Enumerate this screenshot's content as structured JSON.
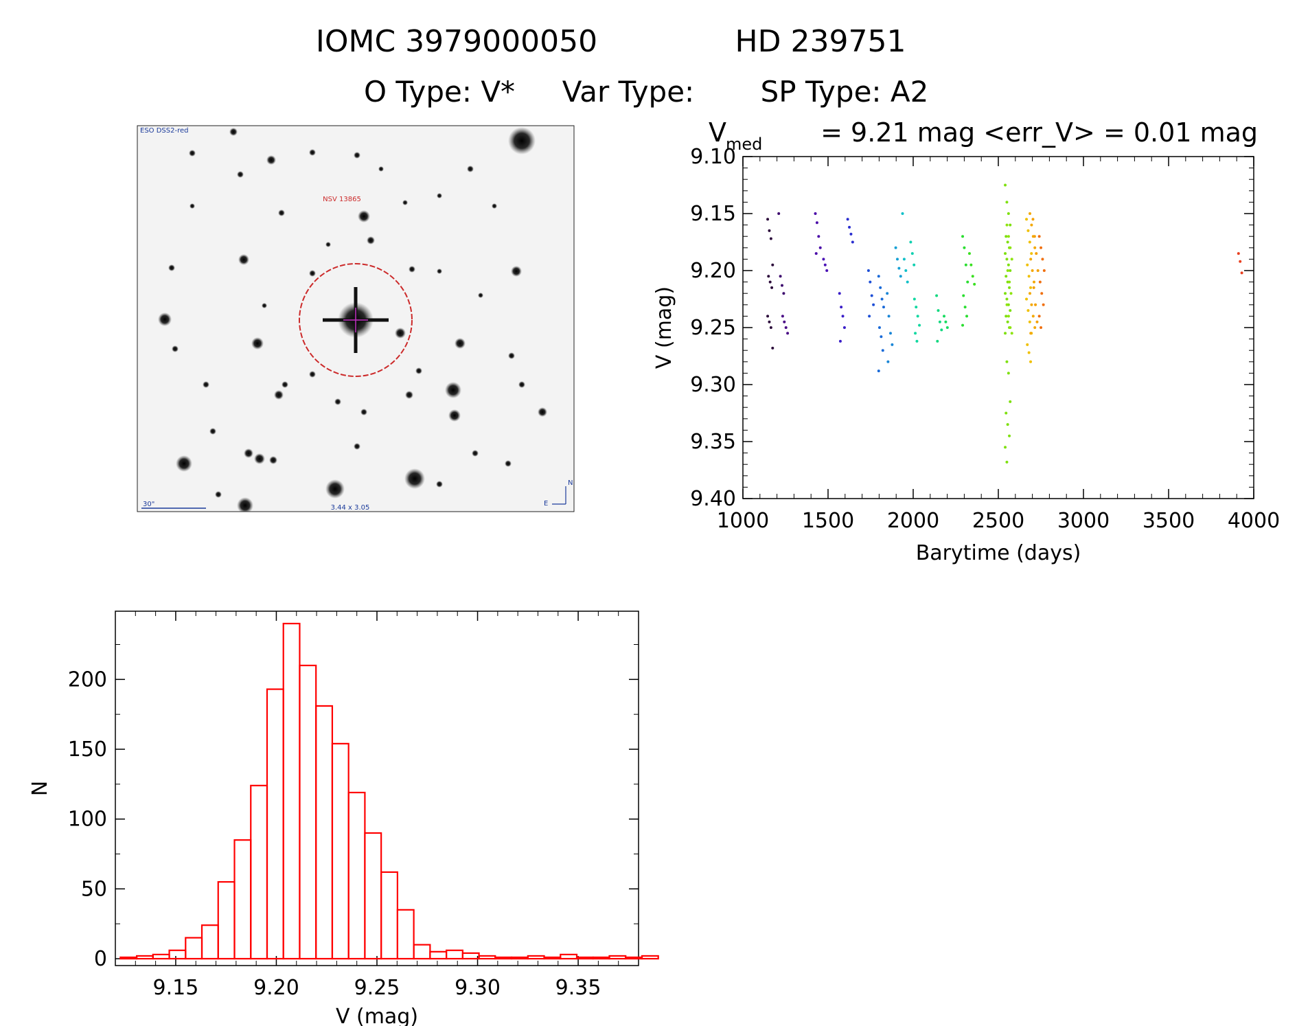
{
  "header": {
    "line1_left": "IOMC 3979000050",
    "line1_right": "HD 239751",
    "otype": "O Type: V*",
    "vartype": "Var Type:",
    "sptype": "SP Type: A2"
  },
  "sky_image": {
    "top_label": "ESO DSS2-red",
    "target_label": "NSV 13865",
    "scale_label": "30\"",
    "fov_label": "3.44 x 3.05",
    "north_label": "N",
    "east_label": "E"
  },
  "lc_title": {
    "v": "V",
    "med": "med",
    "rest": "= 9.21 mag <err_V> = 0.01 mag"
  },
  "colors": {
    "histogram": "#ff0000",
    "target_circle": "#cc2a2a",
    "sky_label": "#1a3a9a"
  },
  "chart_data": [
    {
      "type": "scatter",
      "title": "V med = 9.21 mag <err_V> = 0.01 mag",
      "xlabel": "Barytime (days)",
      "ylabel": "V (mag)",
      "xlim": [
        1000,
        4000
      ],
      "ylim": [
        9.4,
        9.1
      ],
      "y_inverted": true,
      "xticks": [
        "1000",
        "1500",
        "2000",
        "2500",
        "3000",
        "3500",
        "4000"
      ],
      "yticks": [
        "9.10",
        "9.15",
        "9.20",
        "9.25",
        "9.30",
        "9.35",
        "9.40"
      ],
      "groups": [
        {
          "x": 1160,
          "color": "#2b0a3a",
          "values": [
            9.155,
            9.165,
            9.172,
            9.195,
            9.205,
            9.21,
            9.215,
            9.24,
            9.245,
            9.25,
            9.268
          ]
        },
        {
          "x": 1225,
          "color": "#3d0a6e",
          "values": [
            9.15,
            9.205,
            9.213,
            9.22
          ]
        },
        {
          "x": 1248,
          "color": "#4a0a85",
          "values": [
            9.24,
            9.245,
            9.25,
            9.255
          ]
        },
        {
          "x": 1440,
          "color": "#4a0aa8",
          "values": [
            9.15,
            9.158,
            9.17,
            9.18,
            9.185
          ]
        },
        {
          "x": 1488,
          "color": "#4a12b5",
          "values": [
            9.19,
            9.195,
            9.2
          ]
        },
        {
          "x": 1582,
          "color": "#3a1ec8",
          "values": [
            9.22,
            9.232,
            9.24,
            9.25,
            9.262
          ]
        },
        {
          "x": 1630,
          "color": "#2a2ed0",
          "values": [
            9.155,
            9.162,
            9.168,
            9.175
          ]
        },
        {
          "x": 1752,
          "color": "#1e4fd6",
          "values": [
            9.2,
            9.21,
            9.222,
            9.23,
            9.24
          ]
        },
        {
          "x": 1812,
          "color": "#1a6ad8",
          "values": [
            9.205,
            9.215,
            9.225,
            9.232,
            9.25,
            9.258,
            9.27,
            9.288
          ]
        },
        {
          "x": 1862,
          "color": "#1a86d6",
          "values": [
            9.22,
            9.24,
            9.255,
            9.265,
            9.28
          ]
        },
        {
          "x": 1912,
          "color": "#14a0d4",
          "values": [
            9.18,
            9.19,
            9.198,
            9.205
          ]
        },
        {
          "x": 1952,
          "color": "#10c0c8",
          "values": [
            9.15,
            9.19,
            9.2,
            9.21
          ]
        },
        {
          "x": 2000,
          "color": "#10d0b0",
          "values": [
            9.175,
            9.185,
            9.195
          ]
        },
        {
          "x": 2022,
          "color": "#10d8a0",
          "values": [
            9.225,
            9.232,
            9.24,
            9.248,
            9.255,
            9.262
          ]
        },
        {
          "x": 2152,
          "color": "#14d880",
          "values": [
            9.222,
            9.235,
            9.245,
            9.252,
            9.262
          ]
        },
        {
          "x": 2196,
          "color": "#18dc60",
          "values": [
            9.24,
            9.245,
            9.25
          ]
        },
        {
          "x": 2305,
          "color": "#2ade30",
          "values": [
            9.17,
            9.18,
            9.195,
            9.21,
            9.222,
            9.232,
            9.24,
            9.248
          ]
        },
        {
          "x": 2345,
          "color": "#3ae020",
          "values": [
            9.185,
            9.195,
            9.205,
            9.212
          ]
        },
        {
          "x": 2555,
          "color": "#7ee00e",
          "values": [
            9.125,
            9.14,
            9.15,
            9.16,
            9.17,
            9.175,
            9.18,
            9.185,
            9.19,
            9.195,
            9.2,
            9.205,
            9.21,
            9.215,
            9.22,
            9.225,
            9.23,
            9.235,
            9.24,
            9.245,
            9.25,
            9.255,
            9.28,
            9.29,
            9.315,
            9.325,
            9.335,
            9.345,
            9.355,
            9.368
          ]
        },
        {
          "x": 2565,
          "color": "#8ee40e",
          "values": [
            9.16,
            9.17,
            9.18,
            9.19,
            9.2,
            9.21,
            9.22,
            9.23,
            9.24,
            9.25,
            9.255
          ]
        },
        {
          "x": 2680,
          "color": "#f0c000",
          "values": [
            9.155,
            9.165,
            9.175,
            9.185,
            9.195,
            9.205,
            9.215,
            9.225,
            9.235,
            9.245,
            9.255,
            9.265,
            9.272,
            9.28
          ]
        },
        {
          "x": 2700,
          "color": "#f4a800",
          "values": [
            9.15,
            9.16,
            9.17,
            9.18,
            9.19,
            9.2,
            9.21,
            9.22,
            9.23,
            9.24,
            9.25,
            9.255
          ]
        },
        {
          "x": 2718,
          "color": "#f4a000",
          "values": [
            9.155,
            9.17,
            9.185,
            9.2,
            9.215,
            9.23,
            9.245
          ]
        },
        {
          "x": 2755,
          "color": "#f07010",
          "values": [
            9.17,
            9.18,
            9.19,
            9.2,
            9.21,
            9.22,
            9.23,
            9.24,
            9.25
          ]
        },
        {
          "x": 3925,
          "color": "#e84020",
          "values": [
            9.185,
            9.192,
            9.202
          ]
        }
      ]
    },
    {
      "type": "bar",
      "series_style": "histogram",
      "xlabel": "V (mag)",
      "ylabel": "N",
      "xlim": [
        9.12,
        9.38
      ],
      "ylim": [
        0,
        240
      ],
      "xticks": [
        "9.15",
        "9.20",
        "9.25",
        "9.30",
        "9.35"
      ],
      "yticks": [
        "0",
        "50",
        "100",
        "150",
        "200"
      ],
      "bin_start": 9.1225,
      "bin_width": 0.0081,
      "counts": [
        1,
        2,
        3,
        6,
        15,
        24,
        55,
        85,
        124,
        193,
        240,
        210,
        181,
        154,
        119,
        90,
        62,
        35,
        10,
        5,
        6,
        4,
        2,
        1,
        1,
        2,
        1,
        3,
        1,
        1,
        2,
        1,
        2
      ]
    }
  ]
}
